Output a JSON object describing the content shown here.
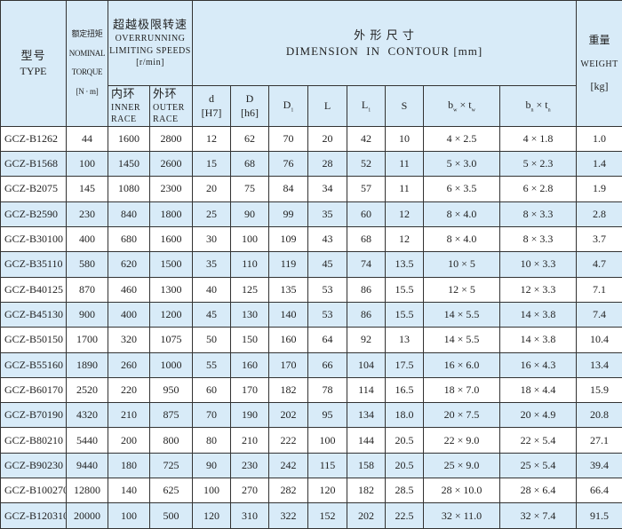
{
  "header": {
    "type_cn": "型号",
    "type_en": "TYPE",
    "torque_cn": "额定扭矩",
    "torque_en1": "NOMINAL",
    "torque_en2": "TORQUE",
    "torque_unit": "[N · m]",
    "speed_cn": "超越极限转速",
    "speed_en1": "OVERRUNNING",
    "speed_en2": "LIMITING SPEEDS",
    "speed_unit": "[r/min]",
    "inner_cn": "内环",
    "inner_en1": "INNER",
    "inner_en2": "RACE",
    "outer_cn": "外环",
    "outer_en1": "OUTER",
    "outer_en2": "RACE",
    "dim_cn": "外 形 尺 寸",
    "dim_en": "DIMENSION  IN  CONTOUR [mm]",
    "weight_cn": "重量",
    "weight_en": "WEIGHT",
    "weight_unit": "[kg]",
    "d": "d",
    "d_tol": "[H7]",
    "D": "D",
    "D_tol": "[h6]",
    "D1": "D",
    "D1_sub": "1",
    "L": "L",
    "L1": "L",
    "L1_sub": "1",
    "S": "S",
    "bw": "b",
    "bw_sub": "w",
    "x1": " × t",
    "tw_sub": "w",
    "bn": "b",
    "bn_sub": "n",
    "x2": " × t",
    "tn_sub": "n"
  },
  "rows": [
    [
      "GCZ-B1262",
      "44",
      "1600",
      "2800",
      "12",
      "62",
      "70",
      "20",
      "42",
      "10",
      "4 × 2.5",
      "4 × 1.8",
      "1.0"
    ],
    [
      "GCZ-B1568",
      "100",
      "1450",
      "2600",
      "15",
      "68",
      "76",
      "28",
      "52",
      "11",
      "5 × 3.0",
      "5 × 2.3",
      "1.4"
    ],
    [
      "GCZ-B2075",
      "145",
      "1080",
      "2300",
      "20",
      "75",
      "84",
      "34",
      "57",
      "11",
      "6 × 3.5",
      "6 × 2.8",
      "1.9"
    ],
    [
      "GCZ-B2590",
      "230",
      "840",
      "1800",
      "25",
      "90",
      "99",
      "35",
      "60",
      "12",
      "8 × 4.0",
      "8 × 3.3",
      "2.8"
    ],
    [
      "GCZ-B30100",
      "400",
      "680",
      "1600",
      "30",
      "100",
      "109",
      "43",
      "68",
      "12",
      "8 × 4.0",
      "8 × 3.3",
      "3.7"
    ],
    [
      "GCZ-B35110",
      "580",
      "620",
      "1500",
      "35",
      "110",
      "119",
      "45",
      "74",
      "13.5",
      "10 × 5",
      "10 × 3.3",
      "4.7"
    ],
    [
      "GCZ-B40125",
      "870",
      "460",
      "1300",
      "40",
      "125",
      "135",
      "53",
      "86",
      "15.5",
      "12 × 5",
      "12 × 3.3",
      "7.1"
    ],
    [
      "GCZ-B45130",
      "900",
      "400",
      "1200",
      "45",
      "130",
      "140",
      "53",
      "86",
      "15.5",
      "14 × 5.5",
      "14 × 3.8",
      "7.4"
    ],
    [
      "GCZ-B50150",
      "1700",
      "320",
      "1075",
      "50",
      "150",
      "160",
      "64",
      "92",
      "13",
      "14 × 5.5",
      "14 × 3.8",
      "10.4"
    ],
    [
      "GCZ-B55160",
      "1890",
      "260",
      "1000",
      "55",
      "160",
      "170",
      "66",
      "104",
      "17.5",
      "16 × 6.0",
      "16 × 4.3",
      "13.4"
    ],
    [
      "GCZ-B60170",
      "2520",
      "220",
      "950",
      "60",
      "170",
      "182",
      "78",
      "114",
      "16.5",
      "18 × 7.0",
      "18 × 4.4",
      "15.9"
    ],
    [
      "GCZ-B70190",
      "4320",
      "210",
      "875",
      "70",
      "190",
      "202",
      "95",
      "134",
      "18.0",
      "20 × 7.5",
      "20 × 4.9",
      "20.8"
    ],
    [
      "GCZ-B80210",
      "5440",
      "200",
      "800",
      "80",
      "210",
      "222",
      "100",
      "144",
      "20.5",
      "22 × 9.0",
      "22 × 5.4",
      "27.1"
    ],
    [
      "GCZ-B90230",
      "9440",
      "180",
      "725",
      "90",
      "230",
      "242",
      "115",
      "158",
      "20.5",
      "25 × 9.0",
      "25 × 5.4",
      "39.4"
    ],
    [
      "GCZ-B100270",
      "12800",
      "140",
      "625",
      "100",
      "270",
      "282",
      "120",
      "182",
      "28.5",
      "28 × 10.0",
      "28 × 6.4",
      "66.4"
    ],
    [
      "GCZ-B120310",
      "20000",
      "100",
      "500",
      "120",
      "310",
      "322",
      "152",
      "202",
      "22.5",
      "32 × 11.0",
      "32 × 7.4",
      "91.5"
    ]
  ]
}
